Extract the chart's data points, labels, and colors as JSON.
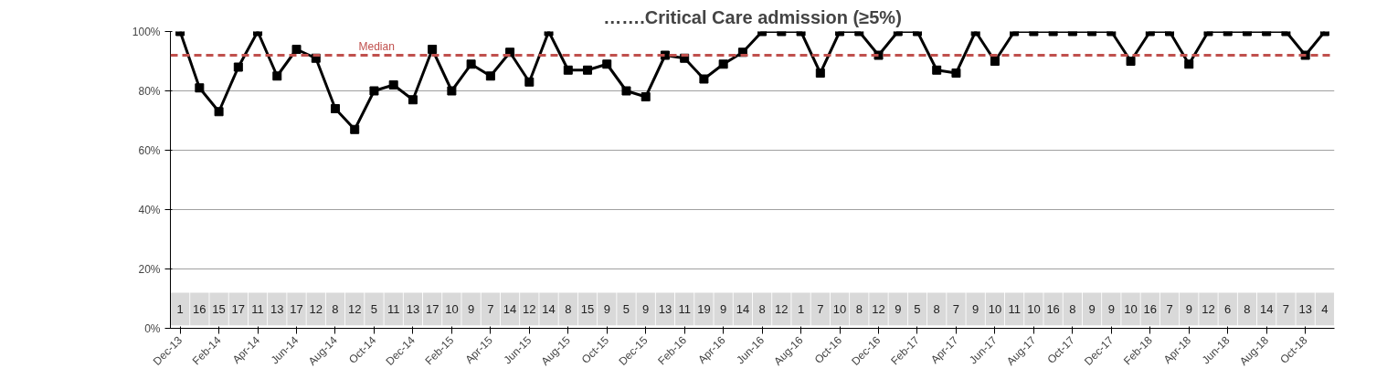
{
  "chart_data": {
    "type": "line",
    "title": "…….Critical Care admission (≥5%)",
    "categories": [
      "Dec-13",
      null,
      "Feb-14",
      null,
      "Apr-14",
      null,
      "Jun-14",
      null,
      "Aug-14",
      null,
      "Oct-14",
      null,
      "Dec-14",
      null,
      "Feb-15",
      null,
      "Apr-15",
      null,
      "Jun-15",
      null,
      "Aug-15",
      null,
      "Oct-15",
      null,
      "Dec-15",
      null,
      "Feb-16",
      null,
      "Apr-16",
      null,
      "Jun-16",
      null,
      "Aug-16",
      null,
      "Oct-16",
      null,
      "Dec-16",
      null,
      "Feb-17",
      null,
      "Apr-17",
      null,
      "Jun-17",
      null,
      "Aug-17",
      null,
      "Oct-17",
      null,
      "Dec-17",
      null,
      "Feb-18",
      null,
      "Apr-18",
      null,
      "Jun-18",
      null,
      "Aug-18",
      null,
      "Oct-18",
      null
    ],
    "series": [
      {
        "color": "#000000",
        "values": [
          100,
          81,
          73,
          88,
          100,
          85,
          94,
          91,
          74,
          67,
          80,
          82,
          77,
          94,
          80,
          89,
          85,
          93,
          83,
          100,
          87,
          87,
          89,
          80,
          78,
          92,
          91,
          84,
          89,
          93,
          100,
          100,
          100,
          86,
          100,
          100,
          92,
          100,
          100,
          87,
          86,
          100,
          90,
          100,
          100,
          100,
          100,
          100,
          100,
          90,
          100,
          100,
          89,
          100,
          100,
          100,
          100,
          100,
          92,
          100
        ]
      }
    ],
    "ylim": [
      0,
      100
    ],
    "yticks": [
      {
        "value": 0,
        "label": "0%"
      },
      {
        "value": 20,
        "label": "20%"
      },
      {
        "value": 40,
        "label": "40%"
      },
      {
        "value": 60,
        "label": "60%"
      },
      {
        "value": 80,
        "label": "80%"
      },
      {
        "value": 100,
        "label": "100%"
      }
    ],
    "ref_lines": [
      {
        "axis": "y",
        "value": 92,
        "label": "Median",
        "color": "#c0504d",
        "line_style": "dashed"
      }
    ],
    "annotations": [
      "1",
      "16",
      "15",
      "17",
      "11",
      "13",
      "17",
      "12",
      "8",
      "12",
      "5",
      "11",
      "13",
      "17",
      "10",
      "9",
      "7",
      "14",
      "12",
      "14",
      "8",
      "15",
      "9",
      "5",
      "9",
      "13",
      "11",
      "19",
      "9",
      "14",
      "8",
      "12",
      "1",
      "7",
      "10",
      "8",
      "12",
      "9",
      "5",
      "8",
      "7",
      "9",
      "10",
      "11",
      "10",
      "16",
      "8",
      "9",
      "9",
      "10",
      "16",
      "7",
      "9",
      "12",
      "6",
      "8",
      "14",
      "7",
      "13",
      "4"
    ],
    "grid": "y",
    "legend": false,
    "marker": "square",
    "line_style": "solid"
  }
}
